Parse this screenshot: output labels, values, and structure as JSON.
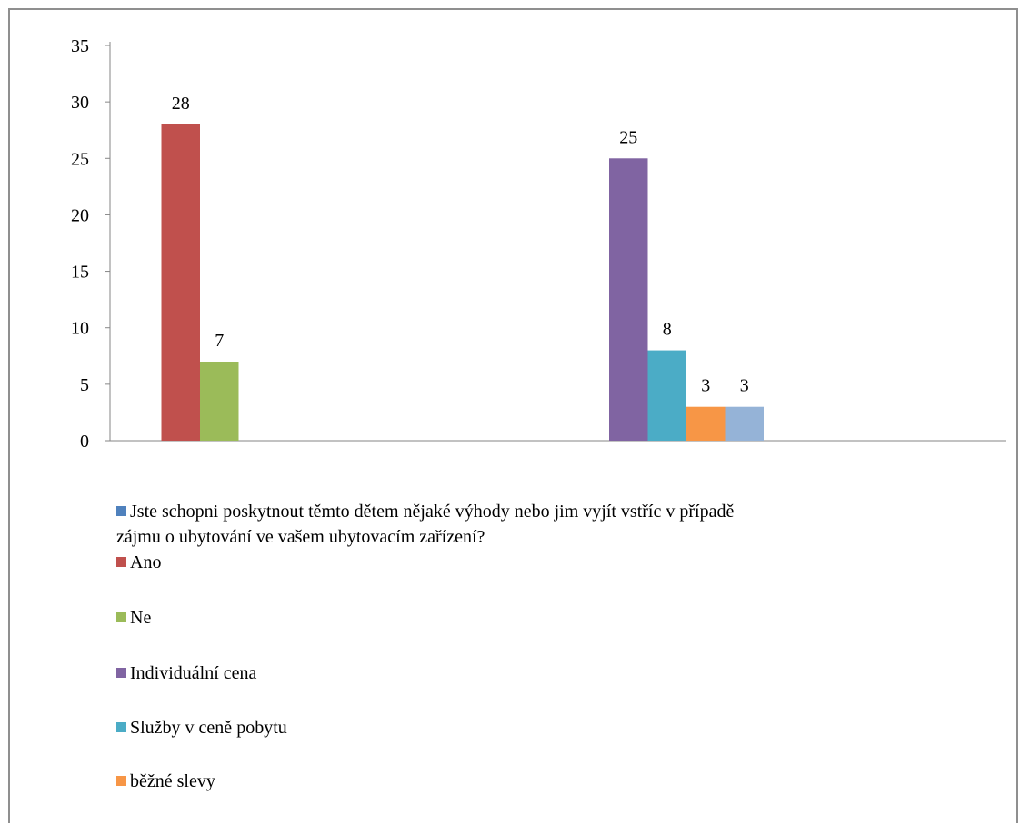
{
  "chart_data": {
    "type": "bar",
    "ylim": [
      0,
      35
    ],
    "yticks": [
      "0",
      "5",
      "10",
      "15",
      "20",
      "25",
      "30",
      "35"
    ],
    "grid": false,
    "legend_position": "bottom",
    "groups": [
      {
        "bars": [
          {
            "series": "Ano",
            "value": 28
          },
          {
            "series": "Ne",
            "value": 7
          }
        ]
      },
      {
        "bars": [
          {
            "series": "Individuální cena",
            "value": 25
          },
          {
            "series": "Služby v ceně pobytu",
            "value": 8
          },
          {
            "series": "běžné slevy",
            "value": 3
          },
          {
            "series": "",
            "value": 3
          }
        ]
      }
    ],
    "series": [
      {
        "name": "Jste schopni poskytnout těmto dětem nějaké výhody nebo jim vyjít vstříc v případě zájmu o ubytování ve vašem ubytovacím zařízení?",
        "color": "#4f81bd"
      },
      {
        "name": "Ano",
        "color": "#c0504d"
      },
      {
        "name": "Ne",
        "color": "#9bbb59"
      },
      {
        "name": "Individuální cena",
        "color": "#8064a2"
      },
      {
        "name": "Služby v ceně pobytu",
        "color": "#4bacc6"
      },
      {
        "name": "běžné slevy",
        "color": "#f79646"
      },
      {
        "name": "",
        "color": "#95b3d7"
      }
    ]
  },
  "legend": [
    {
      "line1": "Jste schopni poskytnout těmto dětem nějaké výhody nebo jim vyjít vstříc v případě",
      "line2": "zájmu o ubytování ve vašem ubytovacím zařízení?",
      "color": "#4f81bd"
    },
    {
      "line1": "Ano",
      "color": "#c0504d"
    },
    {
      "line1": "Ne",
      "color": "#9bbb59"
    },
    {
      "line1": "Individuální cena",
      "color": "#8064a2"
    },
    {
      "line1": "Služby v ceně pobytu",
      "color": "#4bacc6"
    },
    {
      "line1": "běžné slevy",
      "color": "#f79646"
    }
  ]
}
